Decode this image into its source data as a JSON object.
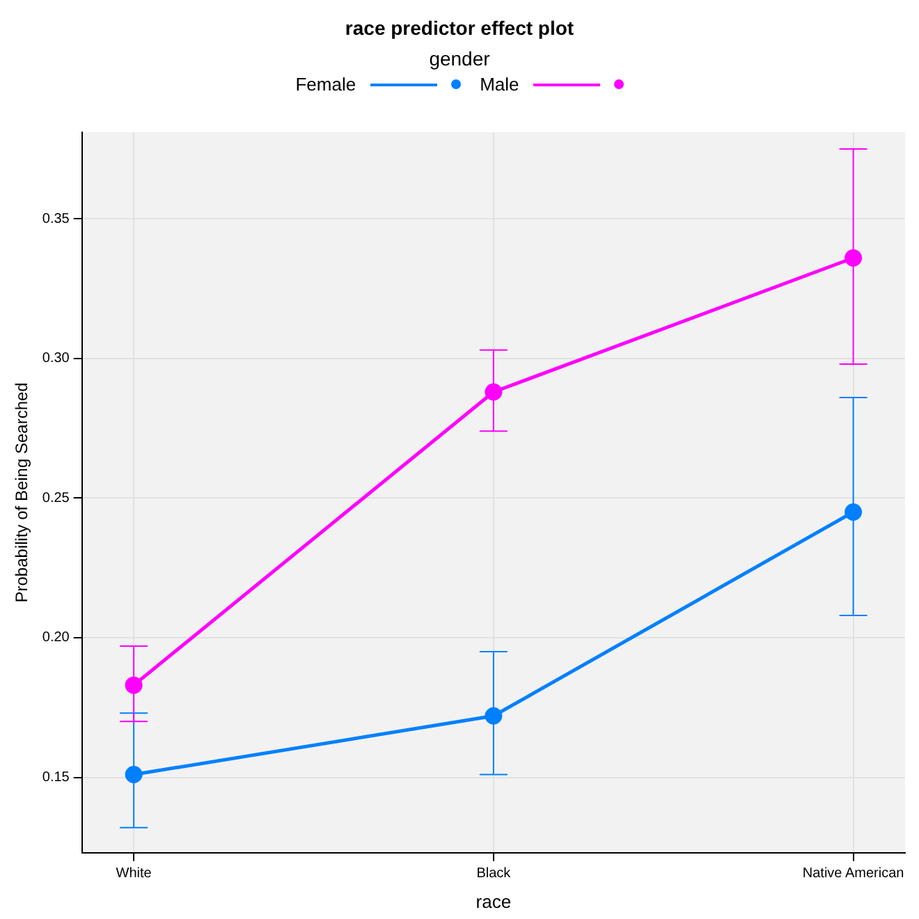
{
  "chart_data": {
    "type": "line",
    "title": "race predictor effect plot",
    "legend_title": "gender",
    "xlabel": "race",
    "ylabel": "Probability of Being Searched",
    "categories": [
      "White",
      "Black",
      "Native American"
    ],
    "series": [
      {
        "name": "Female",
        "color": "#0080ff",
        "values": [
          0.151,
          0.172,
          0.245
        ],
        "errors": [
          [
            0.132,
            0.173
          ],
          [
            0.151,
            0.195
          ],
          [
            0.208,
            0.286
          ]
        ]
      },
      {
        "name": "Male",
        "color": "#ff00ff",
        "values": [
          0.183,
          0.288,
          0.336
        ],
        "errors": [
          [
            0.17,
            0.197
          ],
          [
            0.274,
            0.303
          ],
          [
            0.298,
            0.375
          ]
        ]
      }
    ],
    "ylim": [
      0.123,
      0.381
    ],
    "yticks": [
      {
        "value": 0.15,
        "label": "0.15"
      },
      {
        "value": 0.2,
        "label": "0.20"
      },
      {
        "value": 0.25,
        "label": "0.25"
      },
      {
        "value": 0.3,
        "label": "0.30"
      },
      {
        "value": 0.35,
        "label": "0.35"
      }
    ],
    "grid": true,
    "legend": "top",
    "marker": "circle",
    "line_style": "solid"
  }
}
